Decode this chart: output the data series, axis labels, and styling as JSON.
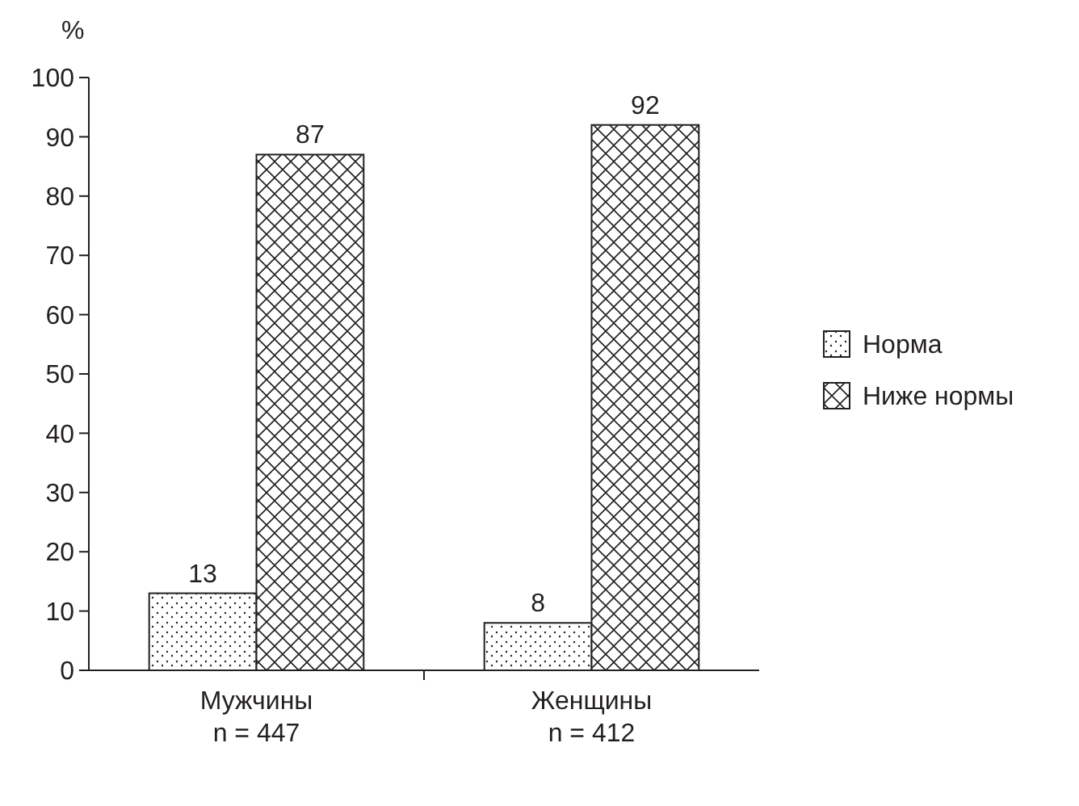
{
  "chart_data": {
    "type": "bar",
    "ylabel": "%",
    "categories": [
      "Мужчины\nn = 447",
      "Женщины\nn = 412"
    ],
    "series": [
      {
        "name": "Норма",
        "color": "#231f20",
        "values": [
          13,
          8
        ]
      },
      {
        "name": "Ниже нормы",
        "color": "#231f20",
        "values": [
          87,
          92
        ]
      }
    ],
    "ylim": [
      0,
      100
    ],
    "yticks": [
      0,
      10,
      20,
      30,
      40,
      50,
      60,
      70,
      80,
      90,
      100
    ],
    "data_labels": true,
    "legend": "right",
    "grid": false
  }
}
